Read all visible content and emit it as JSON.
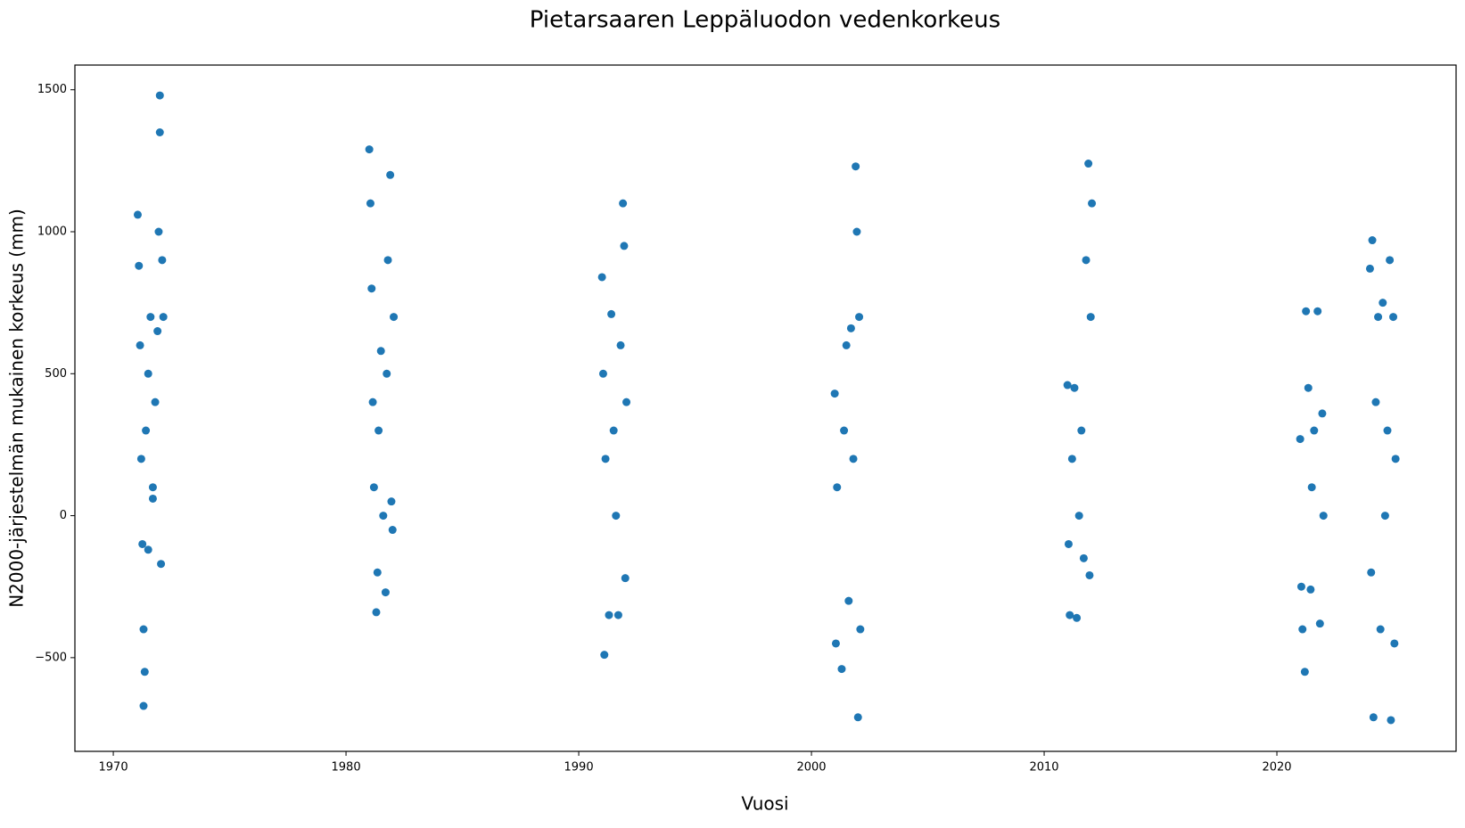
{
  "chart_data": {
    "type": "scatter",
    "title": "Pietarsaaren Leppäluodon vedenkorkeus",
    "x_label": "Vuosi",
    "y_label": "N2000-järjestelmän mukainen korkeus (mm)",
    "color": "#1f77b4",
    "xlim": [
      1968.35,
      2027.7
    ],
    "ylim": [
      -830,
      1587
    ],
    "xticks": [
      1970,
      1980,
      1990,
      2000,
      2010,
      2020
    ],
    "yticks": [
      {
        "value": -500,
        "label": "−500"
      },
      0,
      500,
      1000,
      1500
    ],
    "series": [
      {
        "name": "Vedenkorkeus",
        "color": "#1f77b4",
        "x": [
          1971.05,
          1971.1,
          1971.15,
          1971.2,
          1971.25,
          1971.3,
          1971.3,
          1971.35,
          1971.4,
          1971.5,
          1971.6,
          1971.7,
          1971.8,
          1971.9,
          1971.95,
          1972.0,
          1972.0,
          1972.05,
          1972.1,
          1972.15,
          1971.5,
          1971.7,
          1981.0,
          1981.05,
          1981.1,
          1981.15,
          1981.2,
          1981.3,
          1981.35,
          1981.4,
          1981.5,
          1981.6,
          1981.7,
          1981.75,
          1981.8,
          1981.9,
          1981.95,
          1982.0,
          1982.05,
          1991.0,
          1991.05,
          1991.1,
          1991.15,
          1991.3,
          1991.4,
          1991.5,
          1991.6,
          1991.7,
          1991.8,
          1991.9,
          1991.95,
          1992.0,
          1992.05,
          2001.0,
          2001.05,
          2001.1,
          2001.3,
          2001.4,
          2001.5,
          2001.6,
          2001.7,
          2001.8,
          2001.9,
          2001.95,
          2002.0,
          2002.05,
          2002.1,
          2011.0,
          2011.05,
          2011.1,
          2011.2,
          2011.3,
          2011.4,
          2011.5,
          2011.6,
          2011.7,
          2011.8,
          2011.9,
          2011.95,
          2012.0,
          2012.05,
          2021.0,
          2021.05,
          2021.1,
          2021.2,
          2021.25,
          2021.35,
          2021.45,
          2021.6,
          2021.75,
          2021.85,
          2021.95,
          2022.0,
          2021.5,
          2024.0,
          2024.05,
          2024.1,
          2024.15,
          2024.25,
          2024.35,
          2024.45,
          2024.55,
          2024.65,
          2024.75,
          2024.85,
          2024.9,
          2025.0,
          2025.05,
          2025.1
        ],
        "values": [
          1060,
          880,
          600,
          200,
          -100,
          -400,
          -670,
          -550,
          300,
          500,
          700,
          100,
          400,
          650,
          1000,
          1480,
          1350,
          -170,
          900,
          700,
          -120,
          60,
          1290,
          1100,
          800,
          400,
          100,
          -340,
          -200,
          300,
          580,
          0,
          -270,
          500,
          900,
          1200,
          50,
          -50,
          700,
          840,
          500,
          -490,
          200,
          -350,
          710,
          300,
          0,
          -350,
          600,
          1100,
          950,
          -220,
          400,
          430,
          -450,
          100,
          -540,
          300,
          600,
          -300,
          660,
          200,
          1230,
          1000,
          -710,
          700,
          -400,
          460,
          -100,
          -350,
          200,
          450,
          -360,
          0,
          300,
          -150,
          900,
          1240,
          -210,
          700,
          1100,
          270,
          -250,
          -400,
          -550,
          720,
          450,
          -260,
          300,
          720,
          -380,
          360,
          0,
          100,
          870,
          -200,
          970,
          -710,
          400,
          700,
          -400,
          750,
          0,
          300,
          900,
          -720,
          700,
          -450,
          200
        ]
      }
    ]
  }
}
